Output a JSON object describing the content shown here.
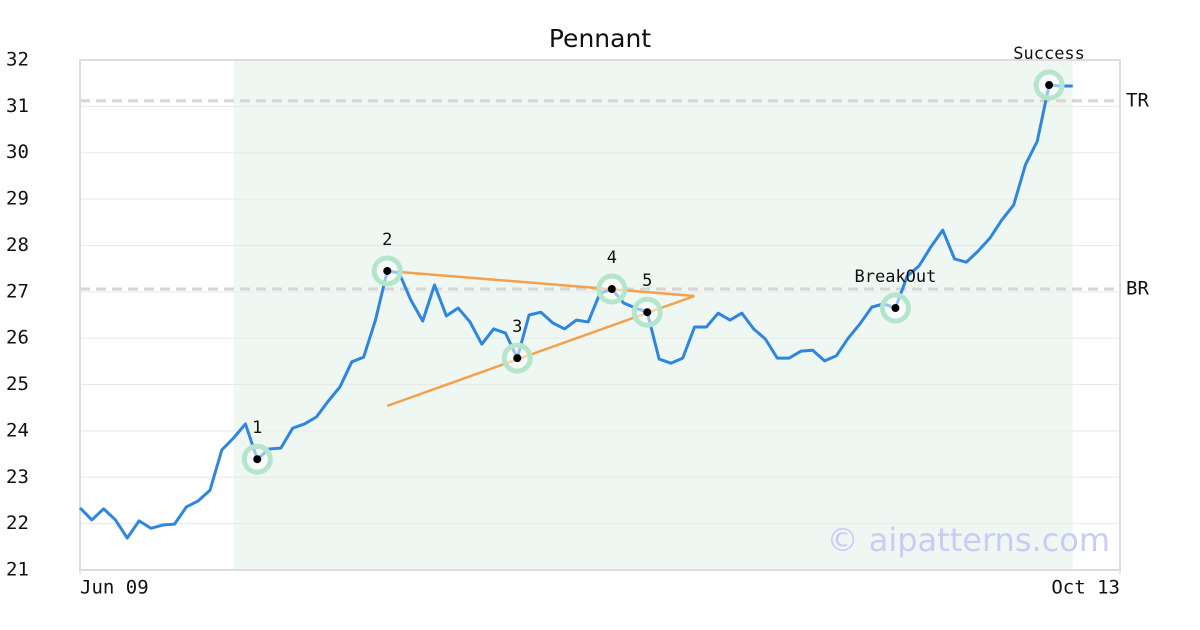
{
  "chart_data": {
    "type": "line",
    "title": "Pennant",
    "watermark": "© aipatterns.com",
    "color": "#2e86de",
    "values": [
      22.34,
      22.08,
      22.32,
      22.08,
      21.69,
      22.06,
      21.9,
      21.97,
      21.99,
      22.36,
      22.49,
      22.72,
      23.59,
      23.85,
      24.15,
      23.39,
      23.61,
      23.63,
      24.06,
      24.15,
      24.3,
      24.64,
      24.95,
      25.49,
      25.59,
      26.39,
      27.45,
      27.41,
      26.82,
      26.37,
      27.15,
      26.48,
      26.65,
      26.35,
      25.87,
      26.2,
      26.11,
      25.57,
      26.5,
      26.56,
      26.33,
      26.2,
      26.39,
      26.35,
      26.97,
      27.06,
      26.76,
      26.65,
      26.56,
      25.55,
      25.46,
      25.57,
      26.24,
      26.24,
      26.54,
      26.39,
      26.54,
      26.2,
      25.98,
      25.57,
      25.57,
      25.72,
      25.74,
      25.51,
      25.62,
      26.0,
      26.31,
      26.67,
      26.74,
      26.65,
      27.34,
      27.56,
      27.97,
      28.33,
      27.71,
      27.64,
      27.88,
      28.16,
      28.55,
      28.87,
      29.74,
      30.25,
      31.46,
      31.44,
      31.44
    ],
    "xlim": [
      0,
      88
    ],
    "xticks": [
      {
        "value": 0,
        "label": "Jun 09"
      },
      {
        "value": 88,
        "label": "Oct 13"
      }
    ],
    "ylim": [
      21,
      32
    ],
    "yticks": [
      21,
      22,
      23,
      24,
      25,
      26,
      27,
      28,
      29,
      30,
      31,
      32
    ],
    "grid": true,
    "highlight": [
      13,
      84
    ],
    "highlight_color": "#eef7f2",
    "levels": [
      {
        "label": "TR",
        "value": 31.12
      },
      {
        "label": "BR",
        "value": 27.06
      }
    ],
    "trendline_color": "#f5a04a",
    "trendlines": [
      {
        "from": [
          26,
          27.45
        ],
        "to": [
          52,
          26.91
        ]
      },
      {
        "from": [
          26,
          24.54
        ],
        "to": [
          52,
          26.91
        ]
      }
    ],
    "points": [
      {
        "label": "1",
        "x": 15,
        "y": 23.39
      },
      {
        "label": "2",
        "x": 26,
        "y": 27.45
      },
      {
        "label": "3",
        "x": 37,
        "y": 25.57
      },
      {
        "label": "4",
        "x": 45,
        "y": 27.06
      },
      {
        "label": "5",
        "x": 48,
        "y": 26.56
      },
      {
        "label": "BreakOut",
        "x": 69,
        "y": 26.65
      },
      {
        "label": "Success",
        "x": 82,
        "y": 31.46
      }
    ]
  }
}
